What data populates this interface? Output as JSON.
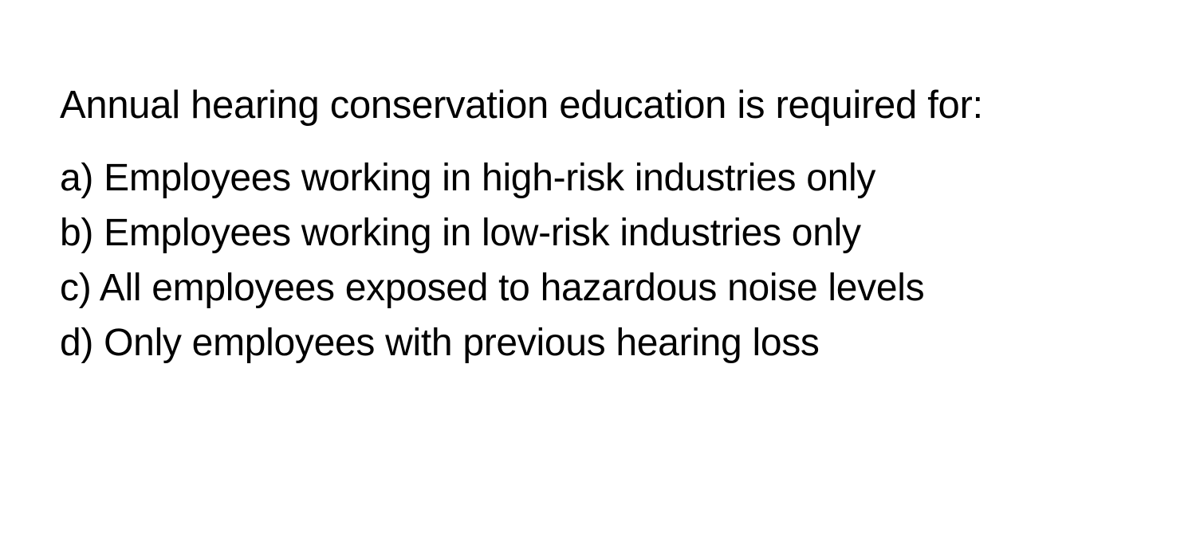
{
  "question": {
    "text": "Annual hearing conservation education is required for:",
    "fontsize": 49,
    "color": "#000000"
  },
  "options": [
    {
      "letter": "a",
      "text": "Employees working in high-risk industries only"
    },
    {
      "letter": "b",
      "text": "Employees working in low-risk industries only"
    },
    {
      "letter": "c",
      "text": "All employees exposed to hazardous noise levels"
    },
    {
      "letter": "d",
      "text": "Only employees with previous hearing loss"
    }
  ],
  "styling": {
    "background_color": "#ffffff",
    "text_color": "#000000",
    "option_fontsize": 48,
    "font_family": "-apple-system, Helvetica, Arial, sans-serif",
    "line_height": 1.5
  }
}
